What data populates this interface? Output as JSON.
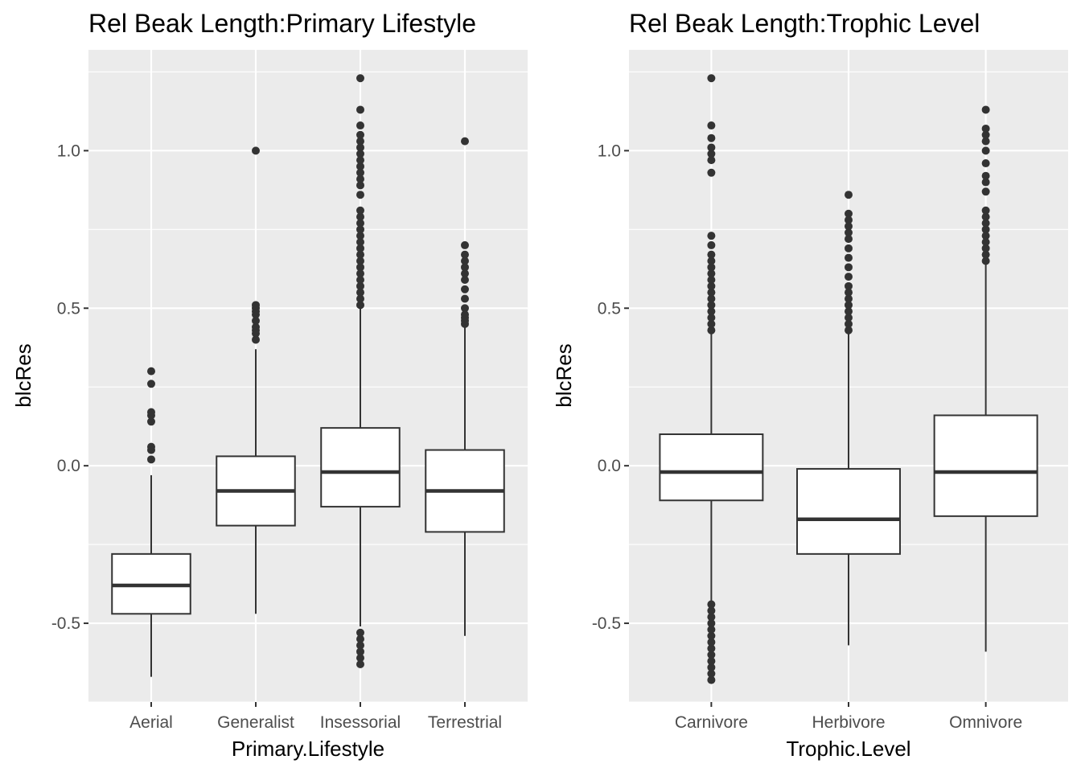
{
  "chart_data": [
    {
      "type": "box",
      "title": "Rel Beak Length:Primary Lifestyle",
      "xlabel": "Primary.Lifestyle",
      "ylabel": "blcRes",
      "ylim": [
        -0.75,
        1.32
      ],
      "yticks": [
        -0.5,
        0.0,
        0.5,
        1.0
      ],
      "ytick_labels": [
        "-0.5",
        "0.0",
        "0.5",
        "1.0"
      ],
      "grid": true,
      "categories": [
        "Aerial",
        "Generalist",
        "Insessorial",
        "Terrestrial"
      ],
      "boxes": [
        {
          "category": "Aerial",
          "whisker_low": -0.67,
          "q1": -0.47,
          "median": -0.38,
          "q3": -0.28,
          "whisker_high": -0.03,
          "outliers": [
            0.02,
            0.05,
            0.06,
            0.14,
            0.16,
            0.17,
            0.26,
            0.3
          ]
        },
        {
          "category": "Generalist",
          "whisker_low": -0.47,
          "q1": -0.19,
          "median": -0.08,
          "q3": 0.03,
          "whisker_high": 0.37,
          "outliers": [
            0.4,
            0.42,
            0.43,
            0.44,
            0.46,
            0.48,
            0.49,
            0.5,
            0.51,
            1.0
          ]
        },
        {
          "category": "Insessorial",
          "whisker_low": -0.51,
          "q1": -0.13,
          "median": -0.02,
          "q3": 0.12,
          "whisker_high": 0.5,
          "outliers": [
            -0.63,
            -0.61,
            -0.59,
            -0.57,
            -0.55,
            -0.53,
            0.51,
            0.53,
            0.55,
            0.57,
            0.59,
            0.61,
            0.63,
            0.65,
            0.67,
            0.69,
            0.71,
            0.73,
            0.75,
            0.77,
            0.79,
            0.81,
            0.86,
            0.89,
            0.91,
            0.93,
            0.95,
            0.97,
            0.99,
            1.01,
            1.03,
            1.05,
            1.08,
            1.13,
            1.23
          ]
        },
        {
          "category": "Terrestrial",
          "whisker_low": -0.54,
          "q1": -0.21,
          "median": -0.08,
          "q3": 0.05,
          "whisker_high": 0.44,
          "outliers": [
            0.45,
            0.46,
            0.47,
            0.48,
            0.5,
            0.53,
            0.56,
            0.59,
            0.61,
            0.63,
            0.65,
            0.67,
            0.7,
            1.03
          ]
        }
      ]
    },
    {
      "type": "box",
      "title": "Rel Beak Length:Trophic Level",
      "xlabel": "Trophic.Level",
      "ylabel": "blcRes",
      "ylim": [
        -0.75,
        1.32
      ],
      "yticks": [
        -0.5,
        0.0,
        0.5,
        1.0
      ],
      "ytick_labels": [
        "-0.5",
        "0.0",
        "0.5",
        "1.0"
      ],
      "grid": true,
      "categories": [
        "Carnivore",
        "Herbivore",
        "Omnivore"
      ],
      "boxes": [
        {
          "category": "Carnivore",
          "whisker_low": -0.43,
          "q1": -0.11,
          "median": -0.02,
          "q3": 0.1,
          "whisker_high": 0.42,
          "outliers": [
            -0.68,
            -0.66,
            -0.64,
            -0.62,
            -0.6,
            -0.58,
            -0.56,
            -0.54,
            -0.52,
            -0.5,
            -0.48,
            -0.46,
            -0.44,
            0.43,
            0.45,
            0.47,
            0.49,
            0.51,
            0.53,
            0.55,
            0.57,
            0.59,
            0.61,
            0.63,
            0.65,
            0.67,
            0.7,
            0.73,
            0.93,
            0.97,
            0.99,
            1.01,
            1.04,
            1.08,
            1.23
          ]
        },
        {
          "category": "Herbivore",
          "whisker_low": -0.57,
          "q1": -0.28,
          "median": -0.17,
          "q3": -0.01,
          "whisker_high": 0.42,
          "outliers": [
            0.43,
            0.45,
            0.47,
            0.49,
            0.51,
            0.53,
            0.55,
            0.57,
            0.6,
            0.63,
            0.66,
            0.69,
            0.72,
            0.74,
            0.76,
            0.78,
            0.8,
            0.86
          ]
        },
        {
          "category": "Omnivore",
          "whisker_low": -0.59,
          "q1": -0.16,
          "median": -0.02,
          "q3": 0.16,
          "whisker_high": 0.64,
          "outliers": [
            0.65,
            0.67,
            0.69,
            0.71,
            0.73,
            0.75,
            0.77,
            0.79,
            0.81,
            0.87,
            0.9,
            0.92,
            0.96,
            1.0,
            1.03,
            1.05,
            1.07,
            1.13
          ]
        }
      ]
    }
  ]
}
